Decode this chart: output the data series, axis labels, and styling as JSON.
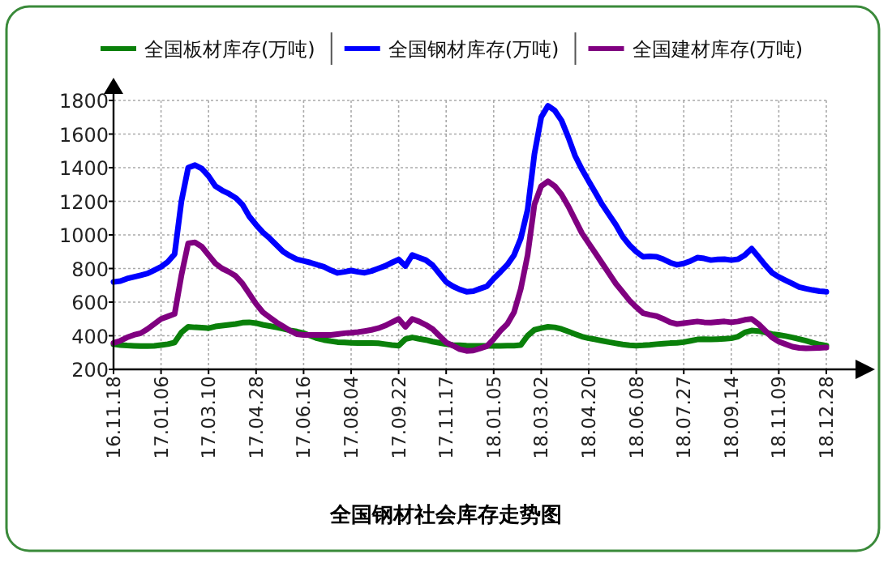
{
  "chart_data": {
    "type": "line",
    "title": "全国钢材社会库存走势图",
    "categories": [
      "16.11.18",
      null,
      null,
      null,
      null,
      null,
      null,
      "17.01.06",
      null,
      null,
      null,
      null,
      null,
      null,
      "17.03.10",
      null,
      null,
      null,
      null,
      null,
      null,
      "17.04.28",
      null,
      null,
      null,
      null,
      null,
      null,
      "17.06.16",
      null,
      null,
      null,
      null,
      null,
      null,
      "17.08.04",
      null,
      null,
      null,
      null,
      null,
      null,
      "17.09.22",
      null,
      null,
      null,
      null,
      null,
      null,
      "17.11.17",
      null,
      null,
      null,
      null,
      null,
      null,
      "18.01.05",
      null,
      null,
      null,
      null,
      null,
      null,
      "18.03.02",
      null,
      null,
      null,
      null,
      null,
      null,
      "18.04.20",
      null,
      null,
      null,
      null,
      null,
      null,
      "18.06.08",
      null,
      null,
      null,
      null,
      null,
      null,
      "18.07.27",
      null,
      null,
      null,
      null,
      null,
      null,
      "18.09.14",
      null,
      null,
      null,
      null,
      null,
      null,
      "18.11.09",
      null,
      null,
      null,
      null,
      null,
      null,
      "18.12.28"
    ],
    "series": [
      {
        "name": "全国板材库存(万吨)",
        "color": "#0a800a",
        "values": [
          350,
          345,
          342,
          340,
          338,
          338,
          340,
          345,
          350,
          360,
          420,
          453,
          450,
          448,
          445,
          455,
          460,
          465,
          470,
          478,
          480,
          475,
          465,
          458,
          450,
          442,
          432,
          425,
          415,
          400,
          385,
          375,
          368,
          362,
          360,
          358,
          357,
          357,
          357,
          355,
          350,
          345,
          341,
          380,
          390,
          382,
          375,
          365,
          358,
          350,
          345,
          343,
          341,
          340,
          340,
          340,
          340,
          340,
          341,
          341,
          345,
          400,
          435,
          445,
          453,
          450,
          440,
          425,
          410,
          395,
          385,
          378,
          370,
          362,
          355,
          348,
          343,
          341,
          343,
          346,
          350,
          353,
          356,
          358,
          362,
          370,
          378,
          380,
          378,
          380,
          382,
          385,
          395,
          420,
          431,
          428,
          420,
          410,
          405,
          398,
          390,
          380,
          370,
          358,
          348,
          341
        ]
      },
      {
        "name": "全国钢材库存(万吨)",
        "color": "#0000ff",
        "values": [
          720,
          725,
          740,
          750,
          760,
          770,
          790,
          810,
          840,
          886,
          1200,
          1400,
          1415,
          1395,
          1350,
          1290,
          1265,
          1245,
          1220,
          1180,
          1110,
          1060,
          1015,
          980,
          940,
          900,
          875,
          855,
          845,
          835,
          822,
          810,
          790,
          774,
          780,
          788,
          780,
          775,
          785,
          800,
          815,
          835,
          854,
          815,
          880,
          865,
          850,
          820,
          770,
          720,
          694,
          675,
          662,
          665,
          680,
          694,
          740,
          780,
          822,
          880,
          980,
          1150,
          1480,
          1700,
          1768,
          1740,
          1680,
          1580,
          1470,
          1390,
          1319,
          1250,
          1180,
          1120,
          1060,
          990,
          940,
          900,
          870,
          872,
          870,
          855,
          835,
          822,
          830,
          845,
          865,
          860,
          850,
          854,
          855,
          850,
          855,
          880,
          918,
          870,
          820,
          775,
          750,
          730,
          710,
          690,
          680,
          672,
          665,
          662
        ]
      },
      {
        "name": "全国建材库存(万吨)",
        "color": "#800080",
        "values": [
          357,
          370,
          390,
          405,
          415,
          440,
          470,
          500,
          515,
          530,
          760,
          950,
          955,
          930,
          880,
          830,
          800,
          780,
          755,
          710,
          650,
          590,
          540,
          510,
          480,
          455,
          430,
          410,
          405,
          405,
          405,
          405,
          405,
          410,
          415,
          418,
          422,
          428,
          435,
          445,
          460,
          480,
          500,
          453,
          500,
          485,
          465,
          440,
          400,
          360,
          341,
          320,
          310,
          312,
          325,
          338,
          380,
          430,
          470,
          540,
          680,
          880,
          1180,
          1290,
          1319,
          1290,
          1240,
          1170,
          1090,
          1010,
          950,
          890,
          830,
          770,
          710,
          660,
          610,
          570,
          534,
          525,
          517,
          500,
          480,
          470,
          475,
          480,
          485,
          480,
          478,
          482,
          485,
          480,
          485,
          495,
          500,
          470,
          430,
          390,
          365,
          350,
          335,
          328,
          325,
          326,
          328,
          330
        ]
      }
    ],
    "ylim": [
      200,
      1800
    ],
    "yticks": [
      200,
      400,
      600,
      800,
      1000,
      1200,
      1400,
      1600,
      1800
    ],
    "grid": true,
    "legend": "top",
    "line_style": "solid"
  }
}
